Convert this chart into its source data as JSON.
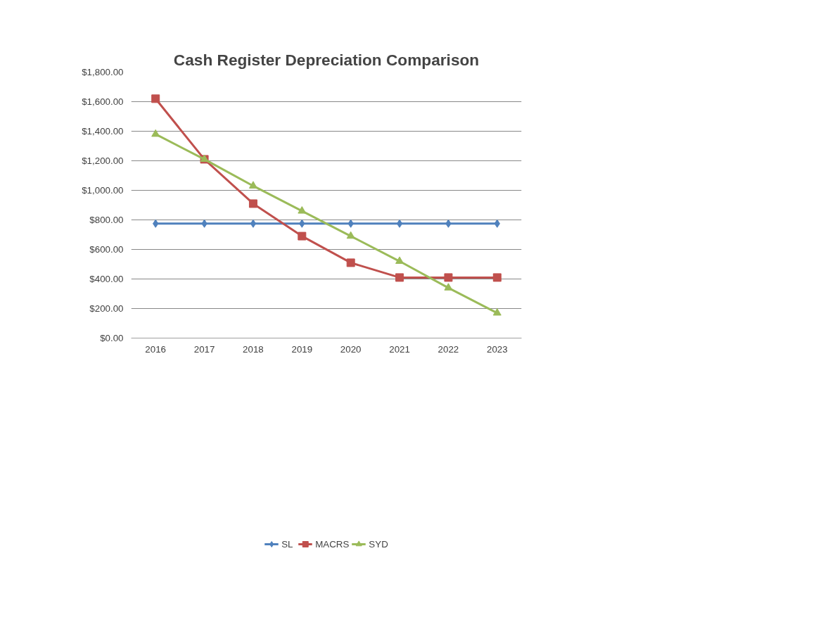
{
  "chart_data": {
    "type": "line",
    "title": "Cash Register Depreciation Comparison",
    "categories": [
      "2016",
      "2017",
      "2018",
      "2019",
      "2020",
      "2021",
      "2022",
      "2023"
    ],
    "series": [
      {
        "name": "SL",
        "color": "#4f81bd",
        "marker": "diamond",
        "values": [
          775,
          775,
          775,
          775,
          775,
          775,
          775,
          775
        ]
      },
      {
        "name": "MACRS",
        "color": "#c0504d",
        "marker": "square",
        "values": [
          1620,
          1210,
          910,
          690,
          510,
          410,
          410,
          410
        ]
      },
      {
        "name": "SYD",
        "color": "#9bbb59",
        "marker": "triangle",
        "values": [
          1380,
          1210,
          1030,
          860,
          690,
          520,
          340,
          170
        ]
      }
    ],
    "ylim": [
      0,
      1800
    ],
    "yticks": [
      {
        "value": 0,
        "label": "$0.00"
      },
      {
        "value": 200,
        "label": "$200.00"
      },
      {
        "value": 400,
        "label": "$400.00"
      },
      {
        "value": 600,
        "label": "$600.00"
      },
      {
        "value": 800,
        "label": "$800.00"
      },
      {
        "value": 1000,
        "label": "$1,000.00"
      },
      {
        "value": 1200,
        "label": "$1,200.00"
      },
      {
        "value": 1400,
        "label": "$1,400.00"
      },
      {
        "value": 1600,
        "label": "$1,600.00"
      },
      {
        "value": 1800,
        "label": "$1,800.00"
      }
    ],
    "grid": "y",
    "legend": "bottom"
  }
}
